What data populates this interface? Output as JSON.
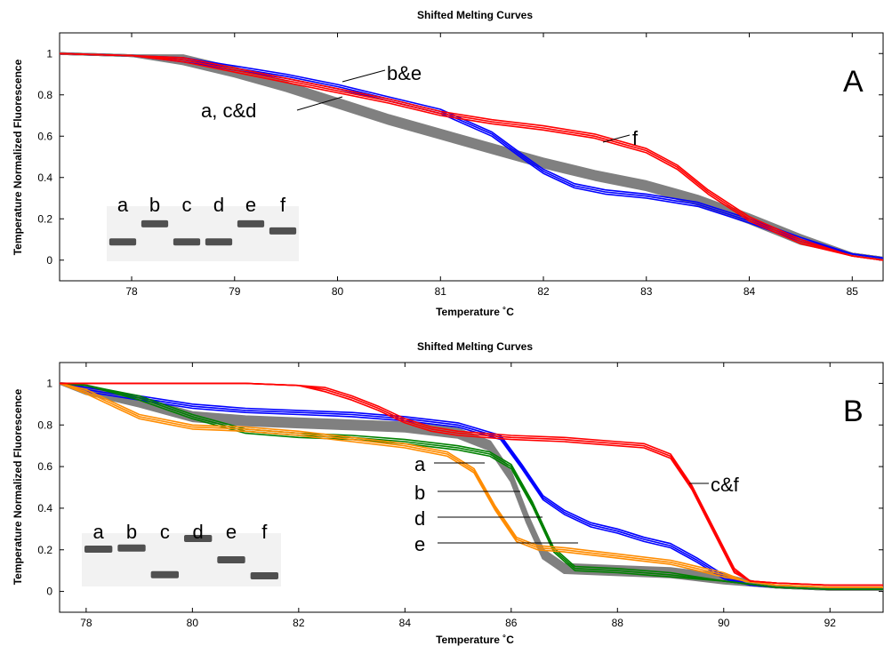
{
  "chart_data": [
    {
      "panel": "A",
      "type": "line",
      "title": "Shifted Melting Curves",
      "xlabel": "Temperature ˚C",
      "ylabel": "Temperature Normalized Fluorescence",
      "xlim": [
        77.3,
        85.3
      ],
      "ylim": [
        -0.1,
        1.1
      ],
      "xticks": [
        "78",
        "79",
        "80",
        "81",
        "82",
        "83",
        "84",
        "85"
      ],
      "yticks": [
        "0",
        "0.2",
        "0.4",
        "0.6",
        "0.8",
        "1"
      ],
      "grid": false,
      "series": [
        {
          "name": "a, c&d",
          "color": "#808080",
          "x": [
            77.3,
            78.0,
            78.5,
            79.0,
            79.5,
            80.0,
            80.5,
            81.0,
            81.5,
            82.0,
            82.5,
            83.0,
            83.5,
            84.0,
            84.5,
            85.0,
            85.3
          ],
          "y": [
            1.0,
            0.99,
            0.97,
            0.91,
            0.84,
            0.76,
            0.68,
            0.61,
            0.54,
            0.47,
            0.41,
            0.36,
            0.29,
            0.2,
            0.1,
            0.03,
            0.01
          ]
        },
        {
          "name": "b&e",
          "color": "#0000ff",
          "x": [
            77.3,
            78.0,
            78.5,
            79.0,
            79.5,
            80.0,
            80.5,
            81.0,
            81.5,
            81.8,
            82.0,
            82.3,
            82.6,
            83.0,
            83.5,
            84.0,
            84.5,
            85.0,
            85.3
          ],
          "y": [
            1.0,
            0.99,
            0.97,
            0.93,
            0.89,
            0.84,
            0.78,
            0.72,
            0.61,
            0.5,
            0.43,
            0.36,
            0.33,
            0.31,
            0.27,
            0.19,
            0.1,
            0.03,
            0.01
          ]
        },
        {
          "name": "f",
          "color": "#ff0000",
          "x": [
            77.3,
            78.0,
            78.5,
            79.0,
            79.5,
            80.0,
            80.5,
            81.0,
            81.5,
            82.0,
            82.5,
            83.0,
            83.3,
            83.6,
            84.0,
            84.5,
            85.0,
            85.3
          ],
          "y": [
            1.0,
            0.99,
            0.97,
            0.92,
            0.87,
            0.82,
            0.77,
            0.71,
            0.67,
            0.64,
            0.6,
            0.53,
            0.45,
            0.33,
            0.2,
            0.09,
            0.02,
            0.0
          ]
        }
      ],
      "annotations": [
        "b&e",
        "a, c&d",
        "f"
      ],
      "panel_label": "A",
      "gel_lanes": [
        "a",
        "b",
        "c",
        "d",
        "e",
        "f"
      ],
      "gel_band_levels": [
        0.35,
        0.68,
        0.35,
        0.35,
        0.68,
        0.55
      ]
    },
    {
      "panel": "B",
      "type": "line",
      "title": "Shifted Melting Curves",
      "xlabel": "Temperature ˚C",
      "ylabel": "Temperature Normalized Fluorescence",
      "xlim": [
        77.5,
        93.0
      ],
      "ylim": [
        -0.1,
        1.1
      ],
      "xticks": [
        "78",
        "80",
        "82",
        "84",
        "86",
        "88",
        "90",
        "92"
      ],
      "yticks": [
        "0",
        "0.2",
        "0.4",
        "0.6",
        "0.8",
        "1"
      ],
      "grid": false,
      "series": [
        {
          "name": "a",
          "color": "#808080",
          "x": [
            77.5,
            78.0,
            79.0,
            80.0,
            81.0,
            82.0,
            83.0,
            84.0,
            85.0,
            85.6,
            86.0,
            86.3,
            86.6,
            87.0,
            88.0,
            89.0,
            90.0,
            91.0,
            92.0,
            93.0
          ],
          "y": [
            1.0,
            0.97,
            0.91,
            0.84,
            0.82,
            0.81,
            0.8,
            0.79,
            0.76,
            0.7,
            0.55,
            0.35,
            0.18,
            0.11,
            0.1,
            0.09,
            0.06,
            0.02,
            0.01,
            0.01
          ]
        },
        {
          "name": "b",
          "color": "#0000ff",
          "x": [
            77.5,
            78.0,
            79.0,
            80.0,
            81.0,
            82.0,
            83.0,
            84.0,
            85.0,
            85.8,
            86.2,
            86.6,
            87.0,
            87.5,
            88.0,
            88.5,
            89.0,
            89.5,
            90.0,
            90.5,
            91.0,
            92.0,
            93.0
          ],
          "y": [
            1.0,
            0.97,
            0.93,
            0.89,
            0.87,
            0.86,
            0.85,
            0.83,
            0.8,
            0.74,
            0.6,
            0.45,
            0.38,
            0.32,
            0.29,
            0.25,
            0.22,
            0.15,
            0.07,
            0.03,
            0.02,
            0.01,
            0.01
          ]
        },
        {
          "name": "d",
          "color": "#008000",
          "x": [
            77.5,
            78.0,
            79.0,
            80.0,
            81.0,
            82.0,
            83.0,
            84.0,
            85.0,
            85.6,
            86.0,
            86.4,
            86.8,
            87.2,
            88.0,
            89.0,
            90.0,
            91.0,
            92.0,
            93.0
          ],
          "y": [
            1.0,
            0.99,
            0.93,
            0.84,
            0.77,
            0.75,
            0.74,
            0.72,
            0.69,
            0.66,
            0.6,
            0.42,
            0.2,
            0.11,
            0.1,
            0.08,
            0.05,
            0.02,
            0.01,
            0.01
          ]
        },
        {
          "name": "e",
          "color": "#ff8c00",
          "x": [
            77.5,
            78.0,
            78.5,
            79.0,
            80.0,
            81.0,
            82.0,
            83.0,
            84.0,
            84.8,
            85.3,
            85.7,
            86.1,
            86.5,
            87.0,
            88.0,
            89.0,
            90.0,
            90.4,
            91.0,
            92.0,
            93.0
          ],
          "y": [
            1.0,
            0.96,
            0.9,
            0.84,
            0.79,
            0.78,
            0.76,
            0.73,
            0.7,
            0.66,
            0.58,
            0.4,
            0.25,
            0.21,
            0.2,
            0.17,
            0.14,
            0.08,
            0.05,
            0.03,
            0.02,
            0.02
          ]
        },
        {
          "name": "c&f",
          "color": "#ff0000",
          "x": [
            77.5,
            78.0,
            80.0,
            81.0,
            82.0,
            82.5,
            83.0,
            83.5,
            84.0,
            84.5,
            85.0,
            86.0,
            87.0,
            88.0,
            88.5,
            89.0,
            89.4,
            89.8,
            90.2,
            90.5,
            91.0,
            92.0,
            93.0
          ],
          "y": [
            1.0,
            1.0,
            1.0,
            1.0,
            0.99,
            0.97,
            0.93,
            0.88,
            0.82,
            0.78,
            0.76,
            0.74,
            0.73,
            0.71,
            0.7,
            0.65,
            0.5,
            0.3,
            0.1,
            0.05,
            0.04,
            0.03,
            0.03
          ]
        }
      ],
      "annotations": [
        "a",
        "b",
        "d",
        "e",
        "c&f"
      ],
      "panel_label": "B",
      "gel_lanes": [
        "a",
        "b",
        "c",
        "d",
        "e",
        "f"
      ],
      "gel_band_levels": [
        0.7,
        0.72,
        0.22,
        0.9,
        0.5,
        0.2
      ]
    }
  ]
}
